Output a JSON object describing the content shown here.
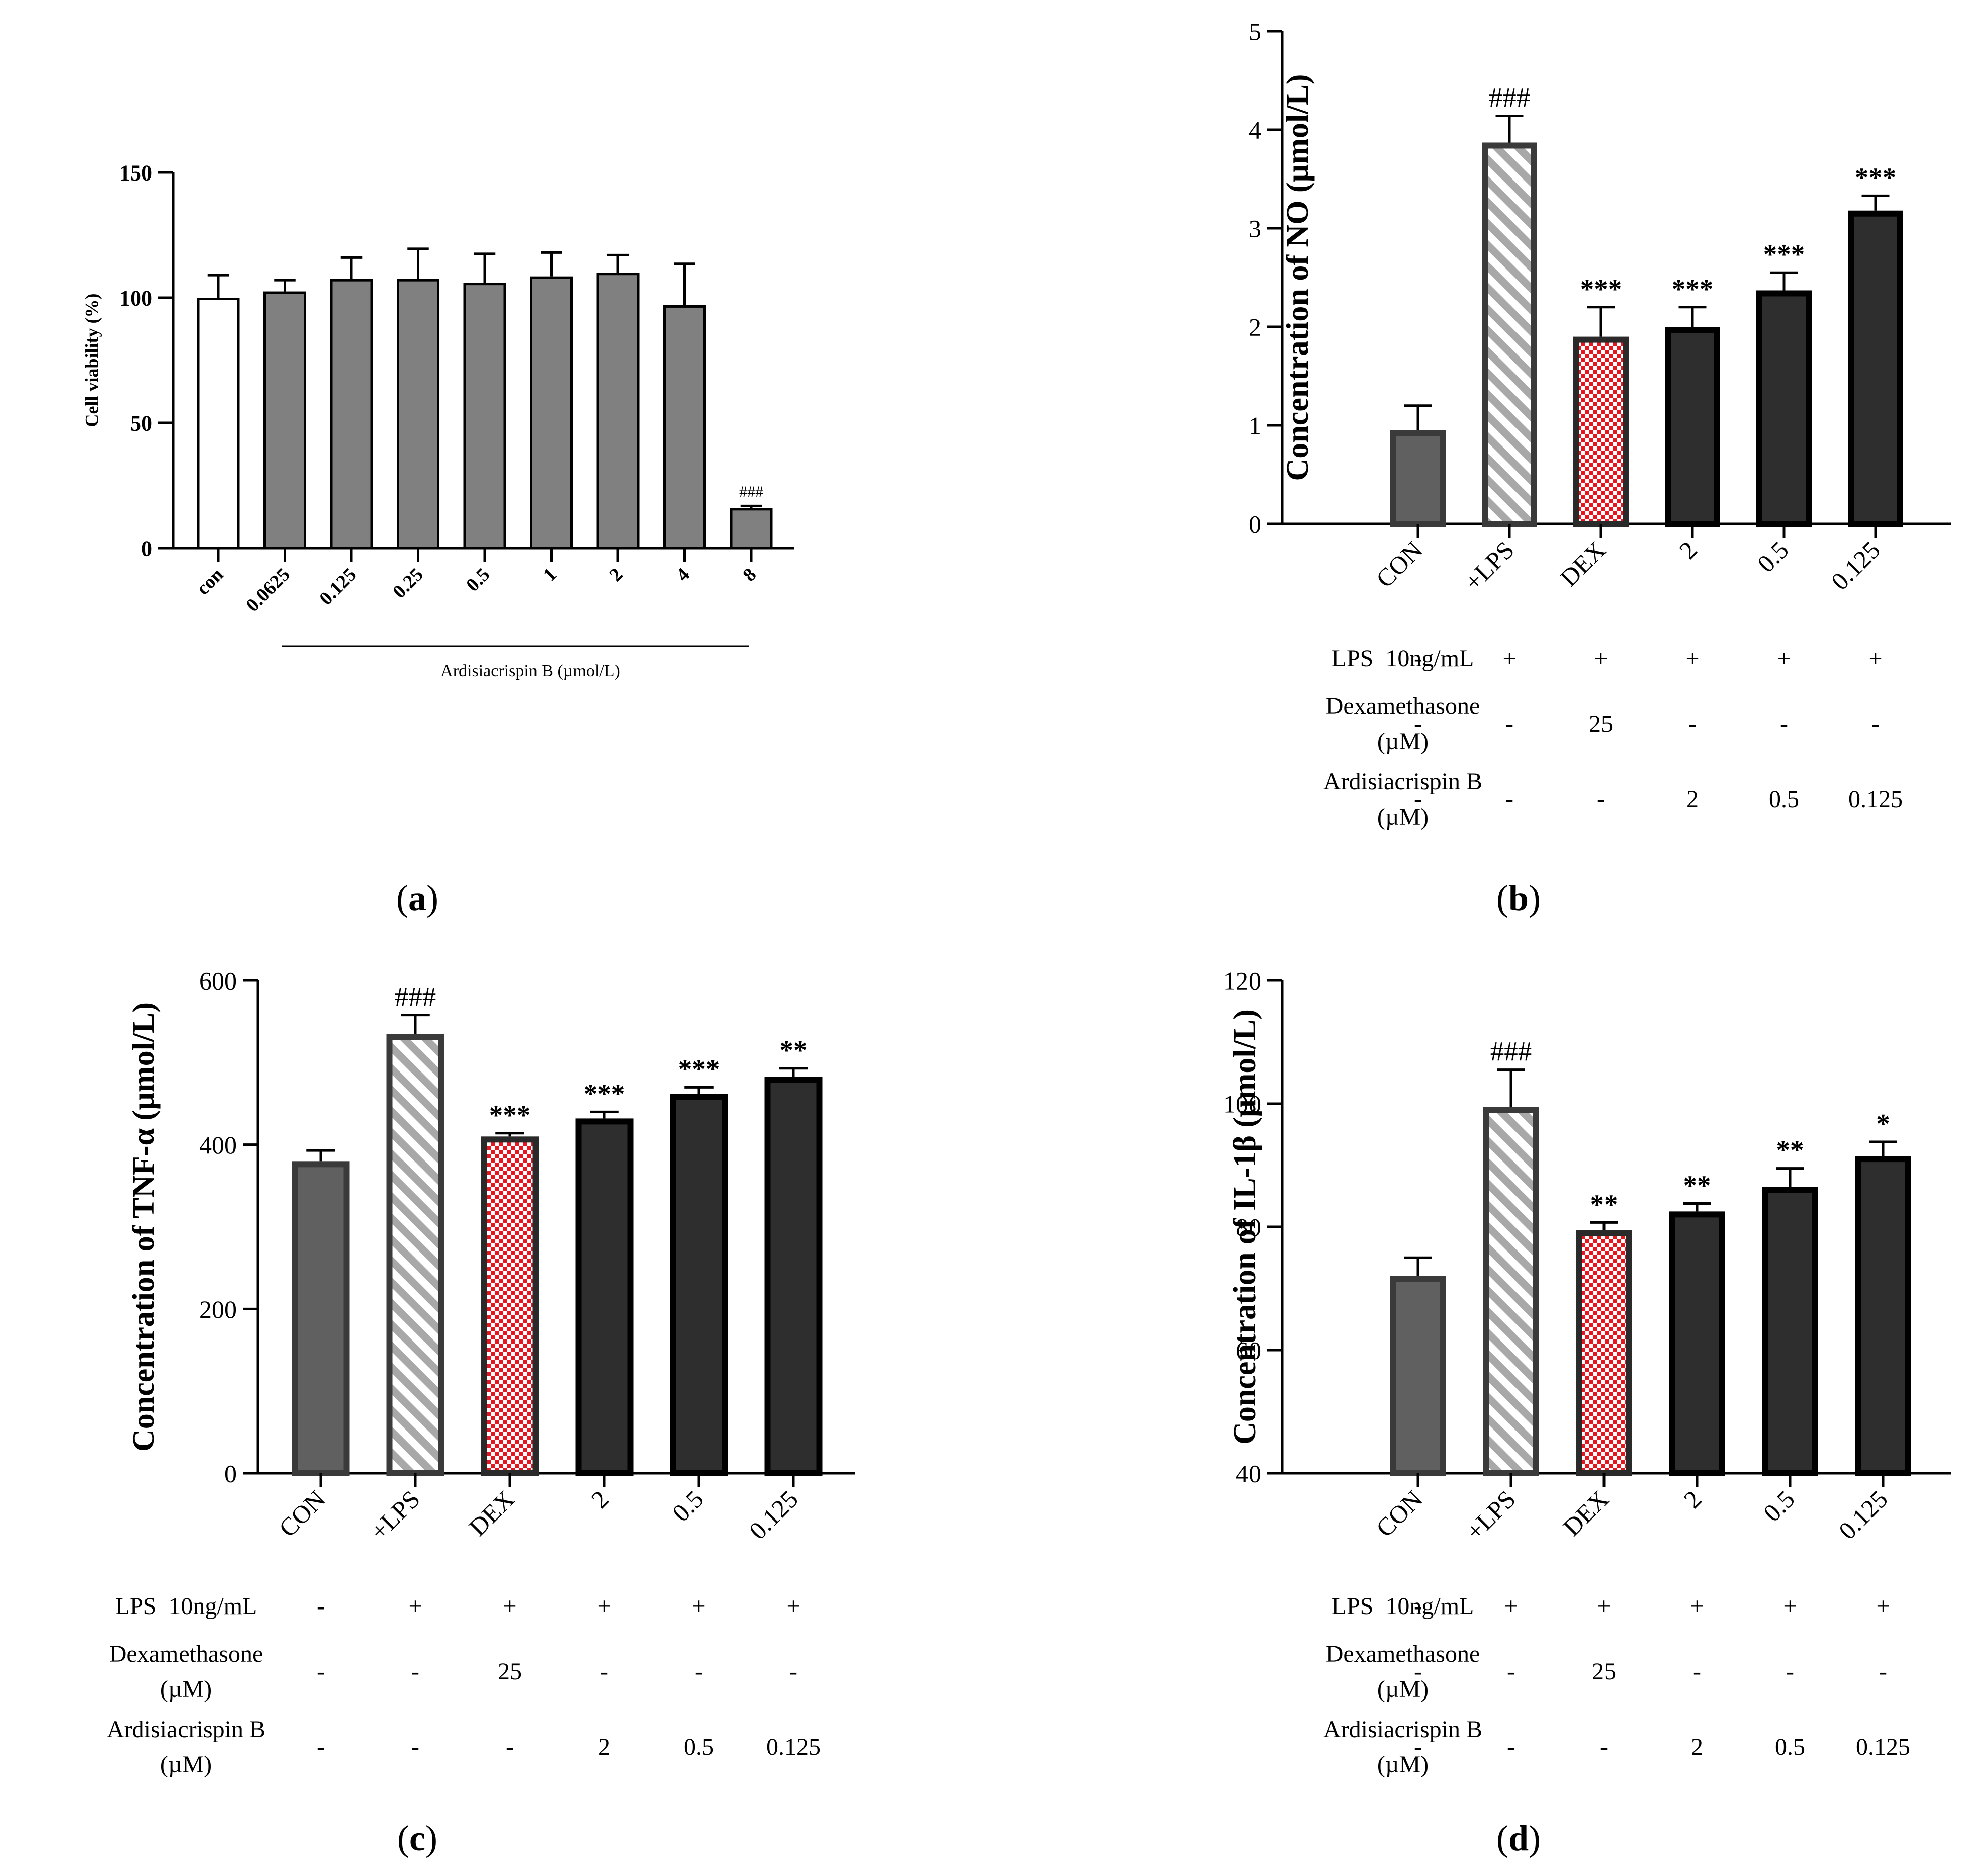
{
  "colors": {
    "white_bar": "#ffffff",
    "gray_bar": "#808080",
    "con_bar": "#606060",
    "dark_bar": "#2e2e2e",
    "stripe": "#a8a8a8",
    "checker_red": "#e8141e",
    "outline": "#000000"
  },
  "chart_data": [
    {
      "id": "a",
      "type": "bar",
      "panel_label": "(a)",
      "ylabel": "Cell viability (%)",
      "xlabel": "Ardisiacrispin B (µmol/L)",
      "ylim": [
        0,
        150
      ],
      "yticks": [
        "0",
        "50",
        "100",
        "150"
      ],
      "categories": [
        "con",
        "0.0625",
        "0.125",
        "0.25",
        "0.5",
        "1",
        "2",
        "4",
        "8"
      ],
      "values": [
        100,
        102.5,
        107.5,
        107.5,
        106,
        108.5,
        110,
        97,
        16
      ],
      "errors": [
        9,
        4.5,
        8.5,
        12,
        11.5,
        9.5,
        7,
        16.5,
        0.8
      ],
      "annotations": [
        "",
        "",
        "",
        "",
        "",
        "",
        "",
        "",
        "###"
      ],
      "fills": [
        "white",
        "gray",
        "gray",
        "gray",
        "gray",
        "gray",
        "gray",
        "gray",
        "gray"
      ]
    },
    {
      "id": "b",
      "type": "bar",
      "panel_label": "(b)",
      "ylabel": "Concentration of NO (µmol/L)",
      "ylim": [
        0,
        5
      ],
      "yticks": [
        "0",
        "1",
        "2",
        "3",
        "4",
        "5"
      ],
      "categories": [
        "CON",
        "+LPS",
        "DEX",
        "2",
        "0.5",
        "0.125"
      ],
      "values": [
        0.95,
        3.87,
        1.9,
        2.0,
        2.37,
        3.18
      ],
      "errors": [
        0.25,
        0.27,
        0.3,
        0.2,
        0.18,
        0.15
      ],
      "annotations": [
        "",
        "###",
        "***",
        "***",
        "***",
        "***"
      ],
      "fills": [
        "con",
        "stripe",
        "checker",
        "dark",
        "dark",
        "dark"
      ],
      "treatment_table": [
        {
          "label": "LPS  10ng/mL",
          "values": [
            "-",
            "+",
            "+",
            "+",
            "+",
            "+"
          ]
        },
        {
          "label": "Dexamethasone",
          "label2": "(µM)",
          "values": [
            "-",
            "-",
            "25",
            "-",
            "-",
            "-"
          ]
        },
        {
          "label": "Ardisiacrispin B",
          "label2": "(µM)",
          "values": [
            "-",
            "-",
            "-",
            "2",
            "0.5",
            "0.125"
          ]
        }
      ]
    },
    {
      "id": "c",
      "type": "bar",
      "panel_label": "(c)",
      "ylabel": "Concentration of TNF-α (µmol/L)",
      "ylim": [
        0,
        600
      ],
      "yticks": [
        "0",
        "200",
        "400",
        "600"
      ],
      "categories": [
        "CON",
        "+LPS",
        "DEX",
        "2",
        "0.5",
        "0.125"
      ],
      "values": [
        380,
        535,
        410,
        432,
        462,
        483
      ],
      "errors": [
        13,
        23,
        4,
        8,
        8,
        10
      ],
      "annotations": [
        "",
        "###",
        "***",
        "***",
        "***",
        "**"
      ],
      "fills": [
        "con",
        "stripe",
        "checker",
        "dark",
        "dark",
        "dark"
      ],
      "treatment_table": [
        {
          "label": "LPS  10ng/mL",
          "values": [
            "-",
            "+",
            "+",
            "+",
            "+",
            "+"
          ]
        },
        {
          "label": "Dexamethasone",
          "label2": "(µM)",
          "values": [
            "-",
            "-",
            "25",
            "-",
            "-",
            "-"
          ]
        },
        {
          "label": "Ardisiacrispin B",
          "label2": "(µM)",
          "values": [
            "-",
            "-",
            "-",
            "2",
            "0.5",
            "0.125"
          ]
        }
      ]
    },
    {
      "id": "d",
      "type": "bar",
      "panel_label": "(d)",
      "ylabel": "Concentration of IL-1β (µmol/L)",
      "ylim": [
        40,
        120
      ],
      "yticks": [
        "40",
        "60",
        "80",
        "100",
        "120"
      ],
      "categories": [
        "CON",
        "+LPS",
        "DEX",
        "2",
        "0.5",
        "0.125"
      ],
      "values": [
        72,
        99.5,
        79.5,
        82.5,
        86.5,
        91.5
      ],
      "errors": [
        3,
        6,
        1.2,
        1.3,
        3,
        2.3
      ],
      "annotations": [
        "",
        "###",
        "**",
        "**",
        "**",
        "*"
      ],
      "fills": [
        "con",
        "stripe",
        "checker",
        "dark",
        "dark",
        "dark"
      ],
      "treatment_table": [
        {
          "label": "LPS  10ng/mL",
          "values": [
            "-",
            "+",
            "+",
            "+",
            "+",
            "+"
          ]
        },
        {
          "label": "Dexamethasone",
          "label2": "(µM)",
          "values": [
            "-",
            "-",
            "25",
            "-",
            "-",
            "-"
          ]
        },
        {
          "label": "Ardisiacrispin B",
          "label2": "(µM)",
          "values": [
            "-",
            "-",
            "-",
            "2",
            "0.5",
            "0.125"
          ]
        }
      ]
    }
  ]
}
